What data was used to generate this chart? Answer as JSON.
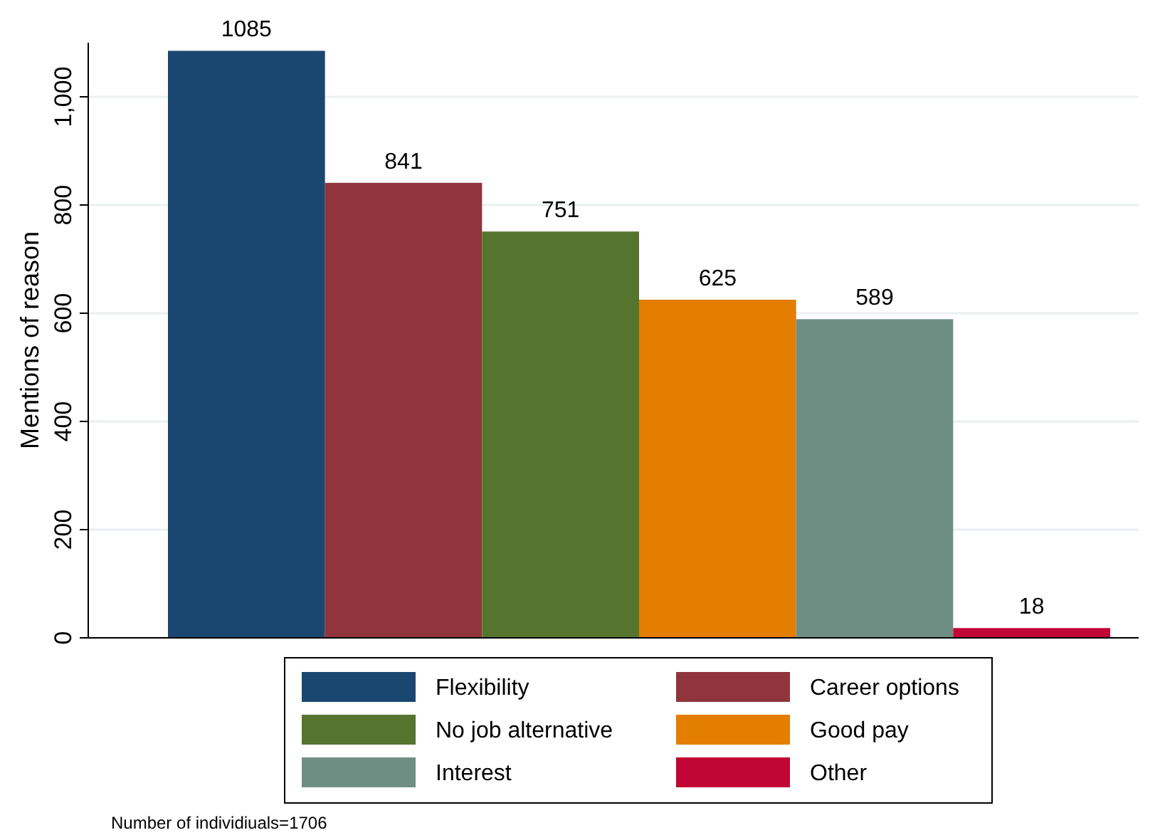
{
  "chart_data": {
    "type": "bar",
    "ylabel": "Mentions of reason",
    "categories": [
      null
    ],
    "series": [
      {
        "name": "Flexibility",
        "color": "#1a476f",
        "values": [
          1085
        ]
      },
      {
        "name": "Career options",
        "color": "#90353b",
        "values": [
          841
        ]
      },
      {
        "name": "No job alternative",
        "color": "#55752f",
        "values": [
          751
        ]
      },
      {
        "name": "Good pay",
        "color": "#e37e00",
        "values": [
          625
        ]
      },
      {
        "name": "Interest",
        "color": "#6e8e84",
        "values": [
          589
        ]
      },
      {
        "name": "Other",
        "color": "#c10534",
        "values": [
          18
        ]
      }
    ],
    "ylim": [
      0,
      1100
    ],
    "yticks": [
      0,
      200,
      400,
      600,
      800,
      {
        "value": 1000,
        "label": "1,000"
      }
    ],
    "grid": "y",
    "legend": "bottom",
    "data_labels": true,
    "annotations": [
      "Number of individiuals=1706"
    ]
  }
}
